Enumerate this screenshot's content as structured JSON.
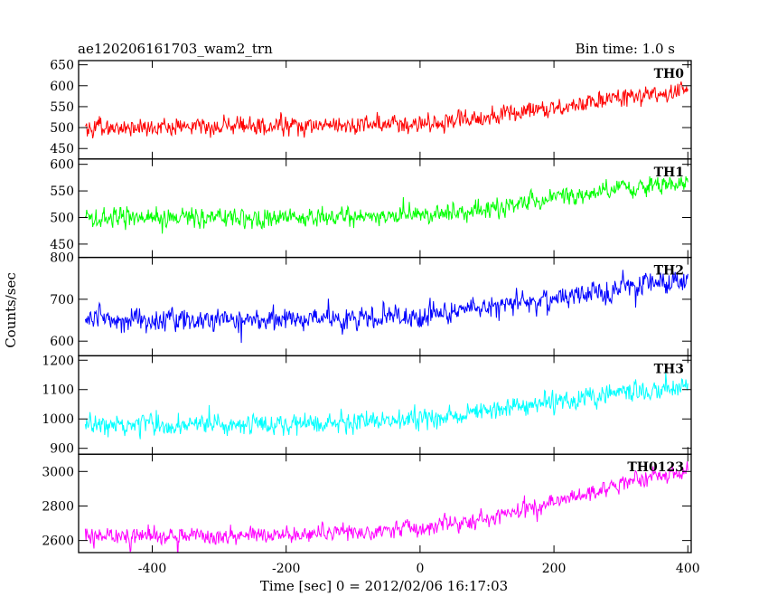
{
  "header": {
    "left_title": "ae120206161703_wam2_trn",
    "right_title": "Bin time: 1.0 s"
  },
  "chart_data": {
    "type": "line",
    "xlabel": "Time [sec] 0 = 2012/02/06 16:17:03",
    "ylabel": "Counts/sec",
    "xlim": [
      -510,
      405
    ],
    "x_ticks": [
      -400,
      -200,
      0,
      200,
      400
    ],
    "x_start": -500,
    "x_end": 400,
    "bin_time": 1.0,
    "panels": [
      {
        "name": "TH0",
        "color": "#ff0000",
        "ylim": [
          425,
          660
        ],
        "y_ticks": [
          450,
          500,
          550,
          600,
          650
        ],
        "trend": [
          [
            -500,
            500
          ],
          [
            -200,
            505
          ],
          [
            0,
            510
          ],
          [
            100,
            525
          ],
          [
            200,
            550
          ],
          [
            300,
            570
          ],
          [
            400,
            585
          ]
        ],
        "noise": 24
      },
      {
        "name": "TH1",
        "color": "#00ff00",
        "ylim": [
          425,
          610
        ],
        "y_ticks": [
          450,
          500,
          550,
          600
        ],
        "trend": [
          [
            -500,
            500
          ],
          [
            -200,
            500
          ],
          [
            0,
            505
          ],
          [
            100,
            515
          ],
          [
            200,
            535
          ],
          [
            300,
            555
          ],
          [
            400,
            565
          ]
        ],
        "noise": 20
      },
      {
        "name": "TH2",
        "color": "#0000ff",
        "ylim": [
          565,
          800
        ],
        "y_ticks": [
          600,
          700,
          800
        ],
        "trend": [
          [
            -500,
            650
          ],
          [
            -200,
            650
          ],
          [
            0,
            660
          ],
          [
            100,
            680
          ],
          [
            200,
            700
          ],
          [
            300,
            725
          ],
          [
            400,
            745
          ]
        ],
        "noise": 30
      },
      {
        "name": "TH3",
        "color": "#00ffff",
        "ylim": [
          880,
          1215
        ],
        "y_ticks": [
          900,
          1000,
          1100,
          1200
        ],
        "trend": [
          [
            -500,
            980
          ],
          [
            -200,
            980
          ],
          [
            0,
            1000
          ],
          [
            100,
            1030
          ],
          [
            200,
            1060
          ],
          [
            300,
            1090
          ],
          [
            400,
            1110
          ]
        ],
        "noise": 38
      },
      {
        "name": "TH0123",
        "color": "#ff00ff",
        "ylim": [
          2530,
          3100
        ],
        "y_ticks": [
          2600,
          2800,
          3000
        ],
        "trend": [
          [
            -500,
            2620
          ],
          [
            -200,
            2630
          ],
          [
            0,
            2670
          ],
          [
            100,
            2730
          ],
          [
            200,
            2820
          ],
          [
            300,
            2930
          ],
          [
            400,
            3000
          ]
        ],
        "noise": 55
      }
    ]
  }
}
